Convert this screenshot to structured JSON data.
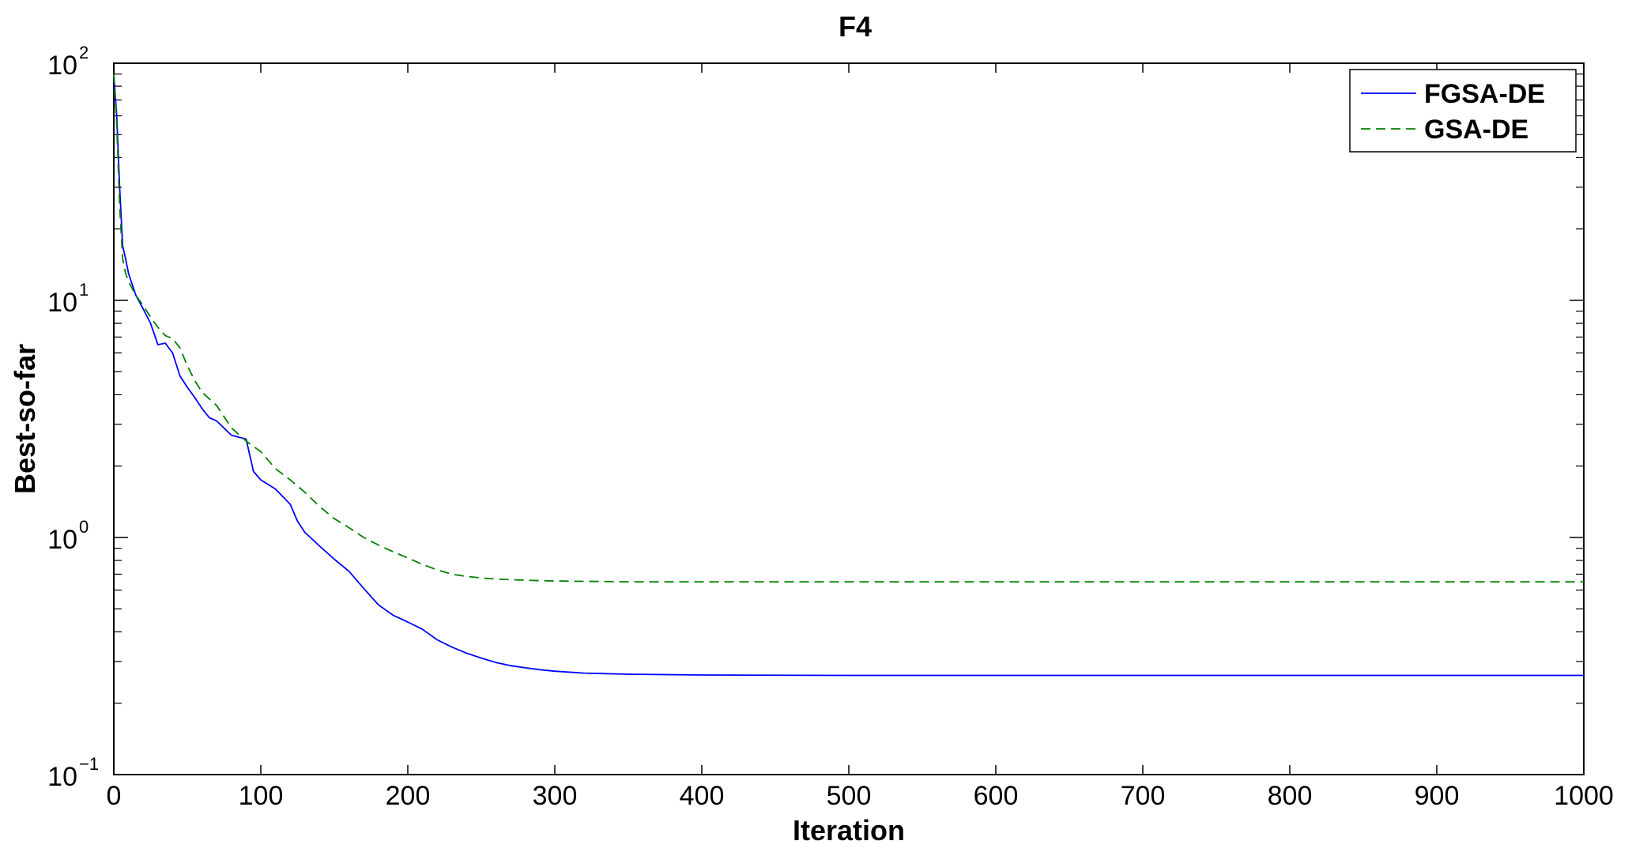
{
  "chart_data": {
    "type": "line",
    "title": "F4",
    "xlabel": "Iteration",
    "ylabel": "Best-so-far",
    "xlim": [
      0,
      1000
    ],
    "ylim": [
      0.1,
      100
    ],
    "yscale": "log",
    "grid": false,
    "legend_position": "top-right",
    "x_ticks": [
      0,
      100,
      200,
      300,
      400,
      500,
      600,
      700,
      800,
      900,
      1000
    ],
    "x_tick_labels": [
      "0",
      "100",
      "200",
      "300",
      "400",
      "500",
      "600",
      "700",
      "800",
      "900",
      "1000"
    ],
    "y_ticks": [
      {
        "value": 0.1,
        "base": "10",
        "exponent": "−1"
      },
      {
        "value": 1,
        "base": "10",
        "exponent": "0"
      },
      {
        "value": 10,
        "base": "10",
        "exponent": "1"
      },
      {
        "value": 100,
        "base": "10",
        "exponent": "2"
      }
    ],
    "series": [
      {
        "name": "FGSA-DE",
        "color": "#0000ff",
        "style": "solid",
        "x": [
          0,
          2,
          4,
          6,
          8,
          10,
          15,
          20,
          25,
          30,
          35,
          40,
          45,
          50,
          55,
          60,
          65,
          70,
          80,
          90,
          95,
          100,
          110,
          120,
          125,
          130,
          140,
          150,
          160,
          170,
          180,
          190,
          200,
          210,
          220,
          230,
          240,
          250,
          260,
          270,
          280,
          290,
          300,
          320,
          350,
          400,
          500,
          600,
          700,
          800,
          900,
          1000
        ],
        "y": [
          90,
          60,
          30,
          17,
          15,
          13,
          10.5,
          9.2,
          8.0,
          6.5,
          6.6,
          6.0,
          4.8,
          4.3,
          3.9,
          3.5,
          3.2,
          3.1,
          2.7,
          2.6,
          1.9,
          1.75,
          1.6,
          1.38,
          1.17,
          1.05,
          0.92,
          0.81,
          0.72,
          0.61,
          0.52,
          0.47,
          0.44,
          0.41,
          0.37,
          0.345,
          0.325,
          0.31,
          0.297,
          0.288,
          0.282,
          0.277,
          0.273,
          0.268,
          0.265,
          0.263,
          0.262,
          0.262,
          0.262,
          0.262,
          0.262,
          0.262
        ]
      },
      {
        "name": "GSA-DE",
        "color": "#008000",
        "style": "dashed",
        "x": [
          0,
          2,
          4,
          6,
          8,
          10,
          15,
          20,
          25,
          30,
          35,
          40,
          45,
          50,
          55,
          60,
          70,
          80,
          90,
          100,
          110,
          120,
          130,
          140,
          150,
          160,
          170,
          180,
          190,
          200,
          210,
          220,
          230,
          240,
          250,
          260,
          280,
          300,
          330,
          350,
          400,
          500,
          600,
          700,
          800,
          900,
          1000
        ],
        "y": [
          90,
          55,
          25,
          15,
          13,
          12,
          10.5,
          9.5,
          8.5,
          7.7,
          7.1,
          6.9,
          6.3,
          5.3,
          4.6,
          4.1,
          3.6,
          2.9,
          2.55,
          2.3,
          1.95,
          1.75,
          1.55,
          1.35,
          1.2,
          1.1,
          1.0,
          0.93,
          0.87,
          0.82,
          0.77,
          0.73,
          0.7,
          0.685,
          0.675,
          0.668,
          0.66,
          0.655,
          0.652,
          0.65,
          0.65,
          0.65,
          0.65,
          0.65,
          0.65,
          0.65,
          0.65
        ]
      }
    ]
  }
}
